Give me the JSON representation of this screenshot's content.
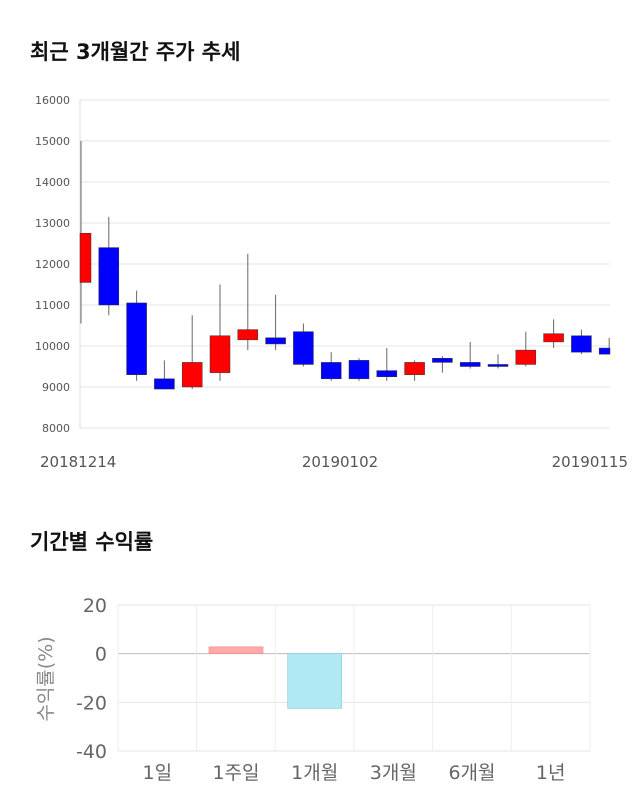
{
  "sections": {
    "candle_title": "최근 3개월간 주가 추세",
    "return_title": "기간별 수익률"
  },
  "chart_data": [
    {
      "type": "candlestick",
      "ylim": [
        8000,
        16000
      ],
      "yticks": [
        "16000",
        "15000",
        "14000",
        "13000",
        "12000",
        "11000",
        "10000",
        "9000",
        "8000"
      ],
      "xtick_labels": [
        "20181214",
        "20190102",
        "20190115"
      ],
      "grid": true,
      "colors": {
        "up": "#ff0000",
        "down": "#0000ff",
        "wick": "#666666"
      },
      "candles": [
        {
          "open": 11550,
          "close": 12750,
          "high": 15000,
          "low": 10550
        },
        {
          "open": 12400,
          "close": 11000,
          "high": 13150,
          "low": 10750
        },
        {
          "open": 11050,
          "close": 9300,
          "high": 11350,
          "low": 9150
        },
        {
          "open": 9200,
          "close": 8950,
          "high": 9650,
          "low": 8950
        },
        {
          "open": 9000,
          "close": 9600,
          "high": 10750,
          "low": 8950
        },
        {
          "open": 9350,
          "close": 10250,
          "high": 11500,
          "low": 9150
        },
        {
          "open": 10150,
          "close": 10400,
          "high": 12250,
          "low": 9900
        },
        {
          "open": 10200,
          "close": 10050,
          "high": 11250,
          "low": 9900
        },
        {
          "open": 10350,
          "close": 9550,
          "high": 10550,
          "low": 9500
        },
        {
          "open": 9600,
          "close": 9200,
          "high": 9850,
          "low": 9150
        },
        {
          "open": 9650,
          "close": 9200,
          "high": 9700,
          "low": 9150
        },
        {
          "open": 9400,
          "close": 9250,
          "high": 9950,
          "low": 9150
        },
        {
          "open": 9300,
          "close": 9600,
          "high": 9650,
          "low": 9150
        },
        {
          "open": 9700,
          "close": 9600,
          "high": 9750,
          "low": 9350
        },
        {
          "open": 9600,
          "close": 9500,
          "high": 10100,
          "low": 9450
        },
        {
          "open": 9550,
          "close": 9500,
          "high": 9800,
          "low": 9450
        },
        {
          "open": 9550,
          "close": 9900,
          "high": 10350,
          "low": 9500
        },
        {
          "open": 10100,
          "close": 10300,
          "high": 10650,
          "low": 9950
        },
        {
          "open": 10250,
          "close": 9850,
          "high": 10400,
          "low": 9800
        },
        {
          "open": 9950,
          "close": 9800,
          "high": 10200,
          "low": 9800
        }
      ]
    },
    {
      "type": "bar",
      "ylabel": "수익률(%)",
      "ylim": [
        -40,
        20
      ],
      "yticks": [
        "20",
        "0",
        "-20",
        "-40"
      ],
      "categories": [
        "1일",
        "1주일",
        "1개월",
        "3개월",
        "6개월",
        "1년"
      ],
      "values": [
        0,
        2.8,
        -22.5,
        null,
        null,
        null
      ],
      "grid": true,
      "colors": {
        "positive": "#ffaaaa",
        "negative": "#b0e8f4"
      }
    }
  ]
}
